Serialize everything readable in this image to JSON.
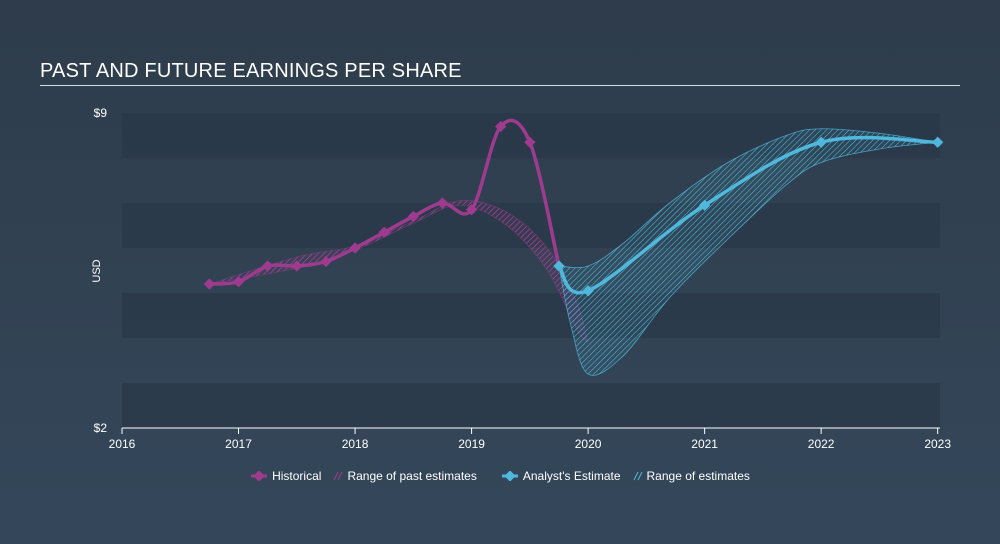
{
  "title": "PAST AND FUTURE EARNINGS PER SHARE",
  "colors": {
    "historical": "#9e3b8f",
    "estimate": "#4fb8dc",
    "grid_band": "#2a3848",
    "axis": "#ffffff"
  },
  "legend": {
    "historical": "Historical",
    "past_range": "Range of past estimates",
    "estimate": "Analyst's Estimate",
    "future_range": "Range of estimates"
  },
  "chart_data": {
    "type": "line",
    "title": "PAST AND FUTURE EARNINGS PER SHARE",
    "ylabel": "USD",
    "xlabel": "",
    "ylim": [
      2,
      9
    ],
    "xlim": [
      2016,
      2023.02
    ],
    "y_tick_labels": [
      {
        "value": 9,
        "label": "$9"
      },
      {
        "value": 2,
        "label": "$2"
      }
    ],
    "x_ticks": [
      2016,
      2017,
      2018,
      2019,
      2020,
      2021,
      2022,
      2023
    ],
    "series": [
      {
        "name": "Historical",
        "points": [
          [
            2016.75,
            5.2
          ],
          [
            2017.0,
            5.25
          ],
          [
            2017.25,
            5.6
          ],
          [
            2017.5,
            5.6
          ],
          [
            2017.75,
            5.7
          ],
          [
            2018.0,
            6.0
          ],
          [
            2018.25,
            6.35
          ],
          [
            2018.5,
            6.7
          ],
          [
            2018.75,
            7.0
          ],
          [
            2019.0,
            6.85
          ],
          [
            2019.25,
            8.7
          ],
          [
            2019.5,
            8.35
          ],
          [
            2019.75,
            5.6
          ]
        ]
      },
      {
        "name": "Analyst's Estimate",
        "points": [
          [
            2019.75,
            5.6
          ],
          [
            2020.0,
            5.05
          ],
          [
            2021.0,
            6.95
          ],
          [
            2022.0,
            8.35
          ],
          [
            2023.0,
            8.35
          ]
        ]
      }
    ],
    "ranges": [
      {
        "name": "Range of past estimates",
        "upper": [
          [
            2016.75,
            5.2
          ],
          [
            2017.5,
            5.8
          ],
          [
            2018.0,
            6.05
          ],
          [
            2018.5,
            6.6
          ],
          [
            2018.9,
            7.05
          ],
          [
            2019.3,
            6.8
          ],
          [
            2019.65,
            6.0
          ],
          [
            2019.9,
            4.8
          ],
          [
            2020.0,
            3.9
          ]
        ],
        "lower": [
          [
            2016.75,
            5.2
          ],
          [
            2017.5,
            5.55
          ],
          [
            2018.0,
            5.95
          ],
          [
            2018.5,
            6.55
          ],
          [
            2018.9,
            6.95
          ],
          [
            2019.3,
            6.5
          ],
          [
            2019.65,
            5.5
          ],
          [
            2019.9,
            4.2
          ],
          [
            2020.0,
            3.9
          ]
        ]
      },
      {
        "name": "Range of estimates",
        "upper": [
          [
            2019.75,
            5.6
          ],
          [
            2020.0,
            5.6
          ],
          [
            2020.3,
            6.1
          ],
          [
            2020.7,
            7.0
          ],
          [
            2021.2,
            7.9
          ],
          [
            2021.7,
            8.5
          ],
          [
            2022.0,
            8.65
          ],
          [
            2022.5,
            8.55
          ],
          [
            2023.0,
            8.35
          ]
        ],
        "lower": [
          [
            2019.75,
            5.6
          ],
          [
            2019.85,
            4.3
          ],
          [
            2020.0,
            3.2
          ],
          [
            2020.3,
            3.6
          ],
          [
            2020.7,
            4.9
          ],
          [
            2021.2,
            6.2
          ],
          [
            2021.7,
            7.4
          ],
          [
            2022.0,
            7.9
          ],
          [
            2022.5,
            8.2
          ],
          [
            2023.0,
            8.35
          ]
        ]
      }
    ]
  }
}
